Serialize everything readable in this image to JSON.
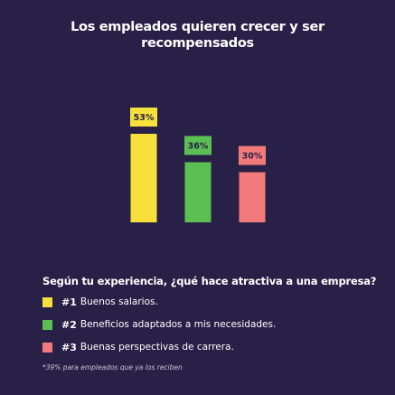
{
  "title": {
    "line1": "Los empleados quieren crecer y ser",
    "line2": "recompensados"
  },
  "chart_data": {
    "type": "bar",
    "categories": [
      "#1",
      "#2",
      "#3"
    ],
    "values": [
      53,
      36,
      30
    ],
    "value_labels": [
      "53%",
      "36%",
      "30%"
    ],
    "colors": [
      "#f7e03c",
      "#5bbf53",
      "#f27a7a"
    ],
    "ylim": [
      0,
      60
    ],
    "grid": false,
    "legend": "below"
  },
  "question": "Según tu experiencia, ¿qué hace atractiva a una empresa?",
  "legend": [
    {
      "rank": "#1",
      "text": "Buenos salarios.",
      "color": "#f7e03c"
    },
    {
      "rank": "#2",
      "text": "Beneficios adaptados a mis necesidades.",
      "color": "#5bbf53"
    },
    {
      "rank": "#3",
      "text": "Buenas perspectivas de carrera.",
      "color": "#f27a7a"
    }
  ],
  "footnote": "*39% para empleados que ya los reciben"
}
